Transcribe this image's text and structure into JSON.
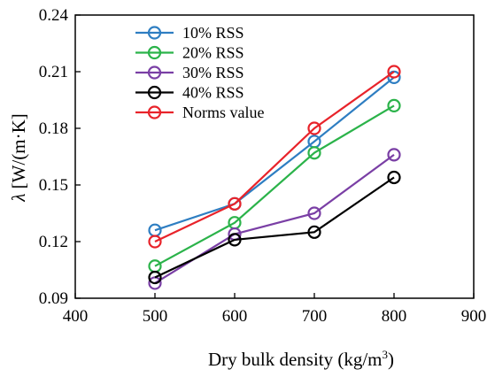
{
  "chart_data": {
    "type": "line",
    "xlabel": "Dry bulk density (kg/m",
    "xlabel_sup": "3",
    "xlabel_end": ")",
    "ylabel_symbol": "λ",
    "ylabel": "[W/(m·K]",
    "xlim": [
      400,
      900
    ],
    "ylim": [
      0.09,
      0.24
    ],
    "x_ticks": [
      400,
      500,
      600,
      700,
      800,
      900
    ],
    "x_tick_labels": [
      "400",
      "500",
      "600",
      "700",
      "800",
      "900"
    ],
    "y_ticks": [
      0.09,
      0.12,
      0.15,
      0.18,
      0.21,
      0.24
    ],
    "y_tick_labels": [
      "0.09",
      "0.12",
      "0.15",
      "0.18",
      "0.21",
      "0.24"
    ],
    "legend_position": "top-left",
    "grid": false,
    "x": [
      500,
      600,
      700,
      800
    ],
    "series": [
      {
        "name": "10% RSS",
        "color": "#2e7ec2",
        "values": [
          0.126,
          0.14,
          0.173,
          0.207
        ]
      },
      {
        "name": "20% RSS",
        "color": "#2bb34a",
        "values": [
          0.107,
          0.13,
          0.167,
          0.192
        ]
      },
      {
        "name": "30% RSS",
        "color": "#7a3fa5",
        "values": [
          0.098,
          0.124,
          0.135,
          0.166
        ]
      },
      {
        "name": "40% RSS",
        "color": "#000000",
        "values": [
          0.101,
          0.121,
          0.125,
          0.154
        ]
      },
      {
        "name": "Norms value",
        "color": "#e8232a",
        "values": [
          0.12,
          0.14,
          0.18,
          0.21
        ]
      }
    ]
  }
}
